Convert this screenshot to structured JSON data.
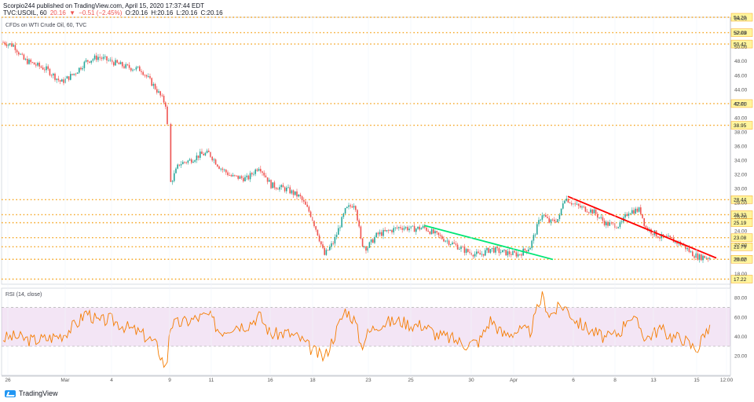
{
  "header": {
    "line1": "Scorpio244 published on TradingView.com, April 15, 2020 17:37:44 EDT",
    "symbol": "TVC:USOIL, 60",
    "last": "20.16",
    "change_arrow": "▼",
    "change": "−0.51 (−2.45%)",
    "open": "O:20.16",
    "high": "H:20.16",
    "low": "L:20.16",
    "close": "C:20.16"
  },
  "footer": {
    "brand": "TradingView"
  },
  "chart_data": {
    "type": "candlestick",
    "title": "CFDs on WTI Crude Oil, 60, TVC",
    "ylim": [
      16.5,
      54.2
    ],
    "y_ticks": [
      18,
      20,
      22,
      24,
      26,
      28,
      30,
      32,
      34,
      36,
      38,
      40,
      42,
      44,
      46,
      48,
      50,
      52,
      54
    ],
    "x_tick_labels": [
      "26",
      "Mar",
      "4",
      "9",
      "11",
      "16",
      "18",
      "23",
      "25",
      "30",
      "Apr",
      "6",
      "8",
      "13",
      "15",
      "12:00"
    ],
    "price_path": [
      [
        0,
        50.8
      ],
      [
        18,
        50.2
      ],
      [
        30,
        48.2
      ],
      [
        60,
        46.8
      ],
      [
        78,
        45.0
      ],
      [
        95,
        46.3
      ],
      [
        110,
        48.0
      ],
      [
        125,
        48.6
      ],
      [
        140,
        48.0
      ],
      [
        160,
        47.2
      ],
      [
        180,
        46.8
      ],
      [
        198,
        44.2
      ],
      [
        212,
        41.7
      ],
      [
        216,
        30.5
      ],
      [
        228,
        33.5
      ],
      [
        242,
        34.0
      ],
      [
        255,
        34.8
      ],
      [
        266,
        35.0
      ],
      [
        280,
        33.0
      ],
      [
        295,
        31.7
      ],
      [
        315,
        31.4
      ],
      [
        330,
        33.2
      ],
      [
        345,
        30.5
      ],
      [
        365,
        29.9
      ],
      [
        382,
        28.8
      ],
      [
        395,
        26.5
      ],
      [
        405,
        23.5
      ],
      [
        413,
        20.6
      ],
      [
        425,
        22.5
      ],
      [
        440,
        27.0
      ],
      [
        452,
        28.0
      ],
      [
        460,
        22.3
      ],
      [
        467,
        21.6
      ],
      [
        480,
        23.5
      ],
      [
        495,
        24.0
      ],
      [
        510,
        24.6
      ],
      [
        525,
        24.3
      ],
      [
        540,
        24.5
      ],
      [
        555,
        23.5
      ],
      [
        575,
        22.3
      ],
      [
        593,
        21.2
      ],
      [
        610,
        20.6
      ],
      [
        625,
        21.5
      ],
      [
        640,
        21.0
      ],
      [
        660,
        20.7
      ],
      [
        675,
        21.8
      ],
      [
        690,
        26.5
      ],
      [
        700,
        25.2
      ],
      [
        712,
        25.8
      ],
      [
        718,
        28.8
      ],
      [
        735,
        27.5
      ],
      [
        755,
        26.8
      ],
      [
        772,
        25.0
      ],
      [
        790,
        24.8
      ],
      [
        800,
        26.8
      ],
      [
        815,
        27.0
      ],
      [
        822,
        24.5
      ],
      [
        840,
        23.2
      ],
      [
        855,
        22.8
      ],
      [
        870,
        22.0
      ],
      [
        880,
        20.9
      ],
      [
        890,
        20.3
      ],
      [
        896,
        20.4
      ],
      [
        906,
        20.16
      ]
    ],
    "levels": [
      {
        "value": 54.2,
        "label": "54.20"
      },
      {
        "value": 52.03,
        "label": "52.03"
      },
      {
        "value": 50.42,
        "label": "50.42"
      },
      {
        "value": 42.01,
        "label": "42.01"
      },
      {
        "value": 38.95,
        "label": "38.95"
      },
      {
        "value": 28.44,
        "label": "28.44"
      },
      {
        "value": 26.32,
        "label": "26.32"
      },
      {
        "value": 25.19,
        "label": "25.19"
      },
      {
        "value": 23.08,
        "label": "23.08"
      },
      {
        "value": 21.79,
        "label": "21.79"
      },
      {
        "value": 20.02,
        "label": "20.02"
      },
      {
        "value": 17.22,
        "label": "17.22"
      }
    ],
    "level_color": "#f5a623",
    "trendlines": [
      {
        "color": "#00e676",
        "from": [
          540,
          24.8
        ],
        "to": [
          704,
          20.0
        ]
      },
      {
        "color": "#ff0000",
        "from": [
          723,
          28.9
        ],
        "to": [
          912,
          20.2
        ]
      }
    ],
    "rsi": {
      "title": "RSI (14, close)",
      "ylim": [
        0,
        90
      ],
      "y_ticks": [
        20,
        40,
        60,
        80
      ],
      "band": [
        30,
        70
      ],
      "line_color": "#f57c00",
      "band_color": "#9c27b0",
      "path": [
        [
          0,
          38
        ],
        [
          20,
          40
        ],
        [
          40,
          36
        ],
        [
          60,
          38
        ],
        [
          80,
          42
        ],
        [
          100,
          55
        ],
        [
          110,
          66
        ],
        [
          125,
          55
        ],
        [
          140,
          58
        ],
        [
          160,
          50
        ],
        [
          175,
          45
        ],
        [
          190,
          38
        ],
        [
          200,
          30
        ],
        [
          212,
          5
        ],
        [
          216,
          52
        ],
        [
          235,
          55
        ],
        [
          255,
          60
        ],
        [
          266,
          62
        ],
        [
          280,
          45
        ],
        [
          300,
          52
        ],
        [
          315,
          52
        ],
        [
          330,
          62
        ],
        [
          345,
          42
        ],
        [
          365,
          44
        ],
        [
          382,
          38
        ],
        [
          395,
          28
        ],
        [
          405,
          22
        ],
        [
          413,
          18
        ],
        [
          425,
          40
        ],
        [
          440,
          68
        ],
        [
          452,
          56
        ],
        [
          460,
          30
        ],
        [
          467,
          42
        ],
        [
          480,
          52
        ],
        [
          495,
          55
        ],
        [
          510,
          56
        ],
        [
          525,
          52
        ],
        [
          540,
          52
        ],
        [
          555,
          42
        ],
        [
          575,
          38
        ],
        [
          593,
          32
        ],
        [
          610,
          35
        ],
        [
          625,
          58
        ],
        [
          640,
          42
        ],
        [
          660,
          46
        ],
        [
          675,
          45
        ],
        [
          690,
          82
        ],
        [
          700,
          62
        ],
        [
          712,
          70
        ],
        [
          718,
          72
        ],
        [
          735,
          55
        ],
        [
          755,
          45
        ],
        [
          772,
          38
        ],
        [
          790,
          45
        ],
        [
          800,
          62
        ],
        [
          815,
          50
        ],
        [
          822,
          38
        ],
        [
          840,
          48
        ],
        [
          855,
          40
        ],
        [
          870,
          38
        ],
        [
          880,
          30
        ],
        [
          890,
          28
        ],
        [
          896,
          45
        ],
        [
          906,
          46
        ]
      ]
    }
  }
}
